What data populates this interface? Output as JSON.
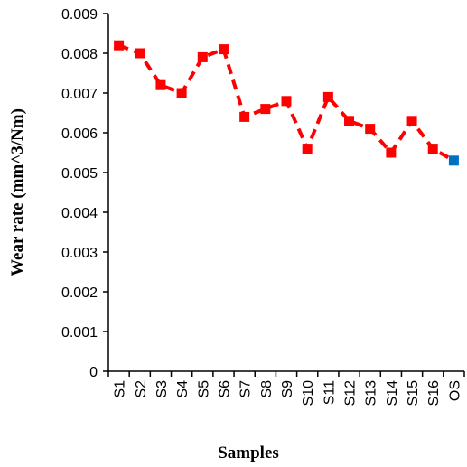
{
  "chart_data": {
    "type": "line",
    "xlabel": "Samples",
    "ylabel": "Wear rate (mm^3/Nm)",
    "categories": [
      "S1",
      "S2",
      "S3",
      "S4",
      "S5",
      "S6",
      "S7",
      "S8",
      "S9",
      "S10",
      "S11",
      "S12",
      "S13",
      "S14",
      "S15",
      "S16",
      "OS"
    ],
    "values": [
      0.0082,
      0.008,
      0.0072,
      0.007,
      0.0079,
      0.0081,
      0.0064,
      0.0066,
      0.0068,
      0.0056,
      0.0069,
      0.0063,
      0.0061,
      0.0055,
      0.0063,
      0.0056,
      0.0053
    ],
    "ylim": [
      0,
      0.009
    ],
    "yticks": [
      "0",
      "0.001",
      "0.002",
      "0.003",
      "0.004",
      "0.005",
      "0.006",
      "0.007",
      "0.008",
      "0.009"
    ],
    "grid": false,
    "line_style": "dashed",
    "marker": "square",
    "colors": {
      "series": "#ff0000",
      "highlight": "#0070c0",
      "axis": "#000000"
    },
    "highlight_category": "OS"
  }
}
